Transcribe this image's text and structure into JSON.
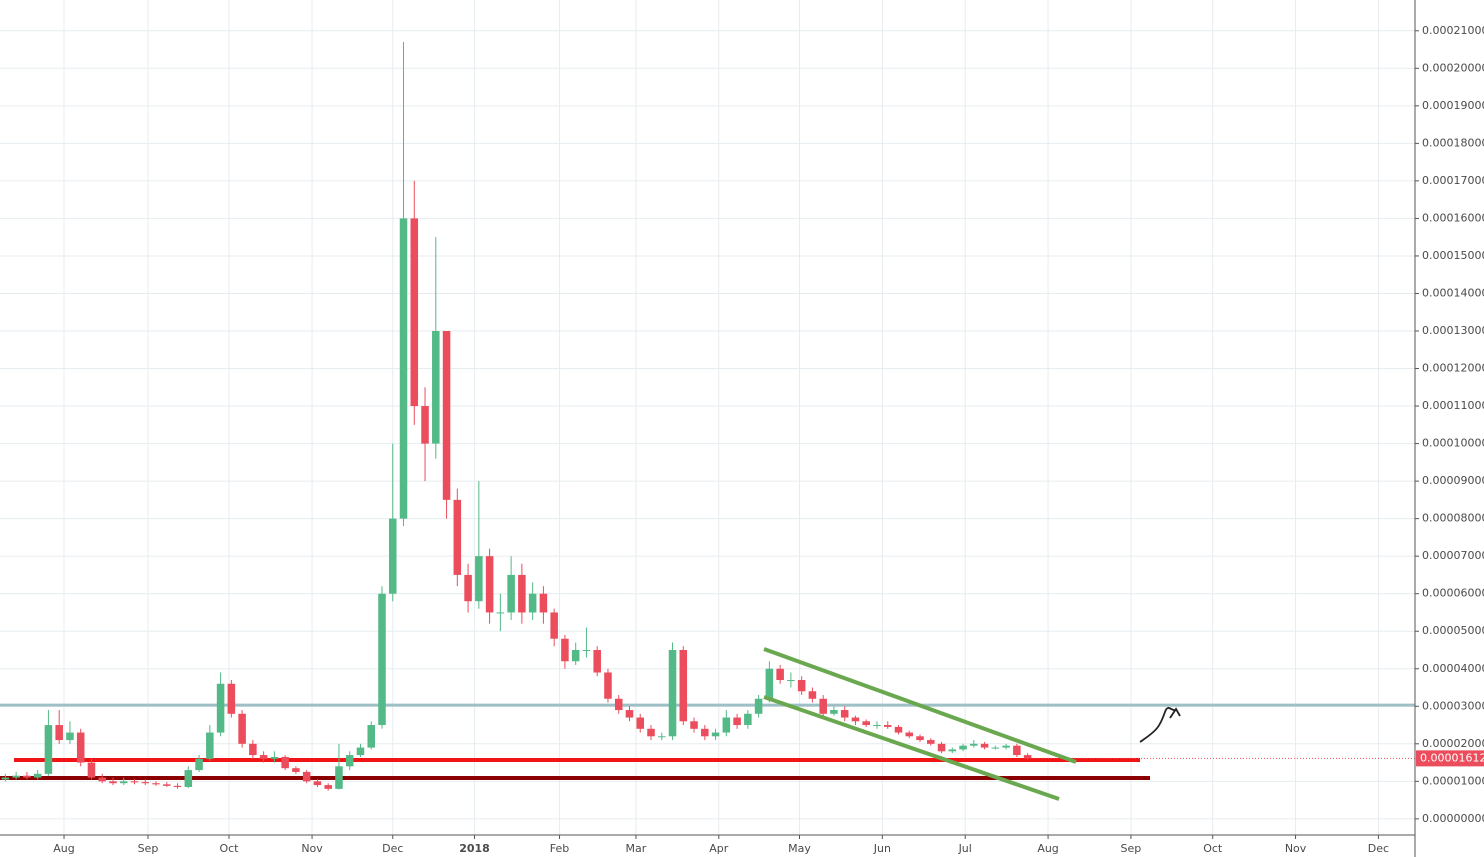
{
  "chart_data": {
    "type": "candlestick",
    "up_color": "#53b987",
    "down_color": "#eb4d5c",
    "grid": true,
    "xlim": [
      0,
      131.5
    ],
    "ylim": [
      -4.3e-06,
      0.0002182
    ],
    "xticks": [
      {
        "value": 5.95,
        "label": "Aug"
      },
      {
        "value": 13.75,
        "label": "Sep"
      },
      {
        "value": 21.28,
        "label": "Oct"
      },
      {
        "value": 29.0,
        "label": "Nov"
      },
      {
        "value": 36.5,
        "label": "Dec"
      },
      {
        "value": 44.1,
        "label": "2018"
      },
      {
        "value": 52.0,
        "label": "Feb"
      },
      {
        "value": 59.1,
        "label": "Mar"
      },
      {
        "value": 66.8,
        "label": "Apr"
      },
      {
        "value": 74.3,
        "label": "May"
      },
      {
        "value": 82.0,
        "label": "Jun"
      },
      {
        "value": 89.7,
        "label": "Jul"
      },
      {
        "value": 97.4,
        "label": "Aug"
      },
      {
        "value": 105.1,
        "label": "Sep"
      },
      {
        "value": 112.7,
        "label": "Oct"
      },
      {
        "value": 120.4,
        "label": "Nov"
      },
      {
        "value": 128.1,
        "label": "Dec"
      }
    ],
    "yticks": [
      {
        "value": 0,
        "label": "0.00000000"
      },
      {
        "value": 1e-05,
        "label": "0.00001000"
      },
      {
        "value": 2e-05,
        "label": "0.00002000"
      },
      {
        "value": 3e-05,
        "label": "0.00003000"
      },
      {
        "value": 4e-05,
        "label": "0.00004000"
      },
      {
        "value": 5e-05,
        "label": "0.00005000"
      },
      {
        "value": 6e-05,
        "label": "0.00006000"
      },
      {
        "value": 7e-05,
        "label": "0.00007000"
      },
      {
        "value": 8e-05,
        "label": "0.00008000"
      },
      {
        "value": 9e-05,
        "label": "0.00009000"
      },
      {
        "value": 0.0001,
        "label": "0.00010000"
      },
      {
        "value": 0.00011,
        "label": "0.00011000"
      },
      {
        "value": 0.00012,
        "label": "0.00012000"
      },
      {
        "value": 0.00013,
        "label": "0.00013000"
      },
      {
        "value": 0.00014,
        "label": "0.00014000"
      },
      {
        "value": 0.00015,
        "label": "0.00015000"
      },
      {
        "value": 0.00016,
        "label": "0.00016000"
      },
      {
        "value": 0.00017,
        "label": "0.00017000"
      },
      {
        "value": 0.00018,
        "label": "0.00018000"
      },
      {
        "value": 0.00019,
        "label": "0.00019000"
      },
      {
        "value": 0.0002,
        "label": "0.00020000"
      },
      {
        "value": 0.00021,
        "label": "0.00021000"
      }
    ],
    "open": [
      1.05e-05,
      1.1e-05,
      1.15e-05,
      1.1e-05,
      1.2e-05,
      2.5e-05,
      2.1e-05,
      2.3e-05,
      1.5e-05,
      1.1e-05,
      1e-05,
      9.5e-06,
      1e-05,
      9.8e-06,
      9.5e-06,
      9.2e-06,
      8.8e-06,
      8.5e-06,
      1.3e-05,
      1.6e-05,
      2.3e-05,
      3.6e-05,
      2.8e-05,
      2e-05,
      1.7e-05,
      1.6e-05,
      1.65e-05,
      1.35e-05,
      1.25e-05,
      1e-05,
      9e-06,
      8e-06,
      1.4e-05,
      1.7e-05,
      1.9e-05,
      2.5e-05,
      6e-05,
      8e-05,
      0.00016,
      0.00011,
      0.0001,
      0.00013,
      8.5e-05,
      6.5e-05,
      5.8e-05,
      7e-05,
      5.5e-05,
      5.5e-05,
      6.5e-05,
      5.5e-05,
      6e-05,
      5.5e-05,
      4.8e-05,
      4.2e-05,
      4.5e-05,
      4.5e-05,
      3.9e-05,
      3.2e-05,
      2.9e-05,
      2.7e-05,
      2.4e-05,
      2.2e-05,
      2.2e-05,
      4.5e-05,
      2.6e-05,
      2.4e-05,
      2.2e-05,
      2.3e-05,
      2.7e-05,
      2.5e-05,
      2.8e-05,
      3.2e-05,
      4e-05,
      3.7e-05,
      3.7e-05,
      3.4e-05,
      3.2e-05,
      2.8e-05,
      2.9e-05,
      2.7e-05,
      2.6e-05,
      2.5e-05,
      2.5e-05,
      2.45e-05,
      2.3e-05,
      2.2e-05,
      2.1e-05,
      2e-05,
      1.8e-05,
      1.85e-05,
      1.95e-05,
      2e-05,
      1.9e-05,
      1.9e-05,
      1.95e-05,
      1.7e-05
    ],
    "high": [
      1.2e-05,
      1.25e-05,
      1.25e-05,
      1.3e-05,
      2.9e-05,
      2.9e-05,
      2.6e-05,
      2.4e-05,
      1.6e-05,
      1.2e-05,
      1.1e-05,
      1.1e-05,
      1.05e-05,
      1.05e-05,
      1e-05,
      9.8e-06,
      9.5e-06,
      1.4e-05,
      1.7e-05,
      2.5e-05,
      3.9e-05,
      3.7e-05,
      2.9e-05,
      2.1e-05,
      1.8e-05,
      1.8e-05,
      1.7e-05,
      1.4e-05,
      1.3e-05,
      1.05e-05,
      9.5e-06,
      2e-05,
      1.8e-05,
      2e-05,
      2.6e-05,
      6.2e-05,
      0.0001,
      0.000207,
      0.00017,
      0.000115,
      0.000155,
      0.00013,
      8.8e-05,
      6.8e-05,
      9e-05,
      7.2e-05,
      6e-05,
      7e-05,
      6.8e-05,
      6.3e-05,
      6.2e-05,
      5.6e-05,
      4.9e-05,
      4.7e-05,
      5.1e-05,
      4.6e-05,
      4e-05,
      3.3e-05,
      3e-05,
      2.8e-05,
      2.5e-05,
      2.3e-05,
      4.7e-05,
      4.6e-05,
      2.7e-05,
      2.5e-05,
      2.4e-05,
      2.9e-05,
      2.8e-05,
      2.9e-05,
      3.3e-05,
      4.2e-05,
      4.1e-05,
      3.9e-05,
      3.8e-05,
      3.5e-05,
      3.3e-05,
      3e-05,
      3e-05,
      2.75e-05,
      2.65e-05,
      2.6e-05,
      2.6e-05,
      2.5e-05,
      2.35e-05,
      2.25e-05,
      2.15e-05,
      2.05e-05,
      1.9e-05,
      2e-05,
      2.1e-05,
      2.05e-05,
      1.95e-05,
      2e-05,
      2e-05,
      1.75e-05
    ],
    "low": [
      1e-05,
      1.05e-05,
      1.05e-05,
      1.05e-05,
      1.15e-05,
      2e-05,
      2e-05,
      1.4e-05,
      1.05e-05,
      9.5e-06,
      9e-06,
      9e-06,
      9.2e-06,
      9e-06,
      8.8e-06,
      8.5e-06,
      8e-06,
      8.2e-06,
      1.25e-05,
      1.55e-05,
      2.2e-05,
      2.7e-05,
      1.9e-05,
      1.6e-05,
      1.5e-05,
      1.5e-05,
      1.3e-05,
      1.2e-05,
      9.5e-06,
      8.5e-06,
      7.5e-06,
      7.8e-06,
      1.3e-05,
      1.65e-05,
      1.85e-05,
      2.4e-05,
      5.8e-05,
      7.8e-05,
      0.000105,
      9e-05,
      9.6e-05,
      8e-05,
      6.2e-05,
      5.5e-05,
      5.6e-05,
      5.2e-05,
      5e-05,
      5.3e-05,
      5.2e-05,
      5.3e-05,
      5.2e-05,
      4.6e-05,
      4e-05,
      4.1e-05,
      4.3e-05,
      3.8e-05,
      3.1e-05,
      2.8e-05,
      2.6e-05,
      2.3e-05,
      2.1e-05,
      2.1e-05,
      2.1e-05,
      2.5e-05,
      2.3e-05,
      2.1e-05,
      2.1e-05,
      2.2e-05,
      2.4e-05,
      2.4e-05,
      2.7e-05,
      3.1e-05,
      3.6e-05,
      3.5e-05,
      3.3e-05,
      3.1e-05,
      2.7e-05,
      2.75e-05,
      2.6e-05,
      2.5e-05,
      2.45e-05,
      2.4e-05,
      2.4e-05,
      2.25e-05,
      2.15e-05,
      2.05e-05,
      1.95e-05,
      1.75e-05,
      1.75e-05,
      1.8e-05,
      1.9e-05,
      1.85e-05,
      1.85e-05,
      1.85e-05,
      1.65e-05,
      1.58e-05
    ],
    "close": [
      1.1e-05,
      1.15e-05,
      1.1e-05,
      1.2e-05,
      2.5e-05,
      2.1e-05,
      2.3e-05,
      1.5e-05,
      1.1e-05,
      1e-05,
      9.5e-06,
      1e-05,
      9.8e-06,
      9.5e-06,
      9.2e-06,
      8.8e-06,
      8.5e-06,
      1.3e-05,
      1.6e-05,
      2.3e-05,
      3.6e-05,
      2.8e-05,
      2e-05,
      1.7e-05,
      1.6e-05,
      1.65e-05,
      1.35e-05,
      1.25e-05,
      1e-05,
      9e-06,
      8e-06,
      1.4e-05,
      1.7e-05,
      1.9e-05,
      2.5e-05,
      6e-05,
      8e-05,
      0.00016,
      0.00011,
      0.0001,
      0.00013,
      8.5e-05,
      6.5e-05,
      5.8e-05,
      7e-05,
      5.5e-05,
      5.5e-05,
      6.5e-05,
      5.5e-05,
      6e-05,
      5.5e-05,
      4.8e-05,
      4.2e-05,
      4.5e-05,
      4.5e-05,
      3.9e-05,
      3.2e-05,
      2.9e-05,
      2.7e-05,
      2.4e-05,
      2.2e-05,
      2.2e-05,
      4.5e-05,
      2.6e-05,
      2.4e-05,
      2.2e-05,
      2.3e-05,
      2.7e-05,
      2.5e-05,
      2.8e-05,
      3.2e-05,
      4e-05,
      3.7e-05,
      3.7e-05,
      3.4e-05,
      3.2e-05,
      2.8e-05,
      2.9e-05,
      2.7e-05,
      2.6e-05,
      2.5e-05,
      2.5e-05,
      2.45e-05,
      2.3e-05,
      2.2e-05,
      2.1e-05,
      2e-05,
      1.8e-05,
      1.85e-05,
      1.95e-05,
      2e-05,
      1.9e-05,
      1.9e-05,
      1.95e-05,
      1.7e-05,
      1.612e-05
    ],
    "levels": [
      {
        "value": 3.03e-05,
        "color": "#9fbfc6"
      },
      {
        "value": 1.568e-05,
        "color": "#f01414"
      },
      {
        "value": 1.089e-05,
        "color": "#8b0000"
      }
    ],
    "last_price": {
      "value": 1.612e-05,
      "label": "0.00001612",
      "color": "#eb4d5c"
    }
  }
}
